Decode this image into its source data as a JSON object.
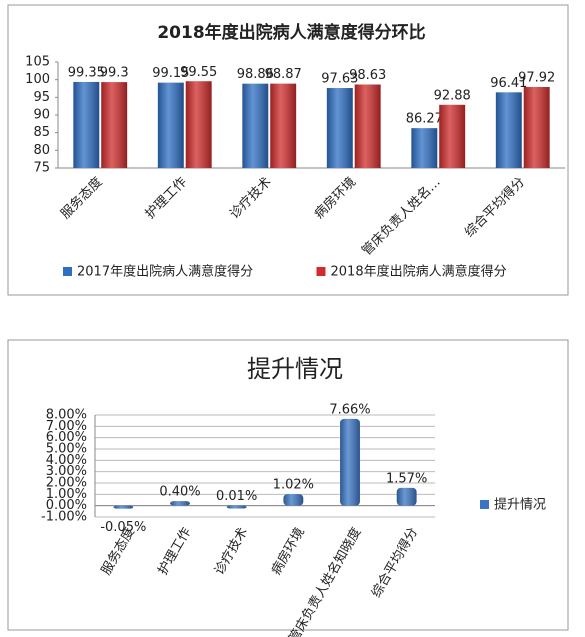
{
  "chart_data": [
    {
      "type": "bar",
      "title": "2018年度出院病人满意度得分环比",
      "categories": [
        "服务态度",
        "护理工作",
        "诊疗技术",
        "病房环境",
        "管床负责人姓名…",
        "综合平均得分"
      ],
      "series": [
        {
          "name": "2017年度出院病人满意度得分",
          "color": "#2e6fc4",
          "values": [
            99.35,
            99.15,
            98.86,
            97.63,
            86.27,
            96.41
          ]
        },
        {
          "name": "2018年度出院病人满意度得分",
          "color": "#d02c2c",
          "values": [
            99.3,
            99.55,
            98.87,
            98.63,
            92.88,
            97.92
          ]
        }
      ],
      "ylim": [
        75,
        105
      ],
      "yticks": [
        75,
        80,
        85,
        90,
        95,
        100,
        105
      ],
      "grid": false,
      "legend": "bottom"
    },
    {
      "type": "bar",
      "title": "提升情况",
      "categories": [
        "服务态度",
        "护理工作",
        "诊疗技术",
        "病房环境",
        "管床负责人姓名知晓度",
        "综合平均得分"
      ],
      "series": [
        {
          "name": "提升情况",
          "color": "#3a75c4",
          "values": [
            -0.05,
            0.4,
            0.01,
            1.02,
            7.66,
            1.57
          ],
          "value_labels": [
            "-0.05%",
            "0.40%",
            "0.01%",
            "1.02%",
            "7.66%",
            "1.57%"
          ]
        }
      ],
      "ylim": [
        -1,
        8
      ],
      "yticks": [
        {
          "value": -1,
          "label": "-1.00%"
        },
        {
          "value": 0,
          "label": "0.00%"
        },
        {
          "value": 1,
          "label": "1.00%"
        },
        {
          "value": 2,
          "label": "2.00%"
        },
        {
          "value": 3,
          "label": "3.00%"
        },
        {
          "value": 4,
          "label": "4.00%"
        },
        {
          "value": 5,
          "label": "5.00%"
        },
        {
          "value": 6,
          "label": "6.00%"
        },
        {
          "value": 7,
          "label": "7.00%"
        },
        {
          "value": 8,
          "label": "8.00%"
        }
      ],
      "grid": true,
      "legend": "right"
    }
  ]
}
